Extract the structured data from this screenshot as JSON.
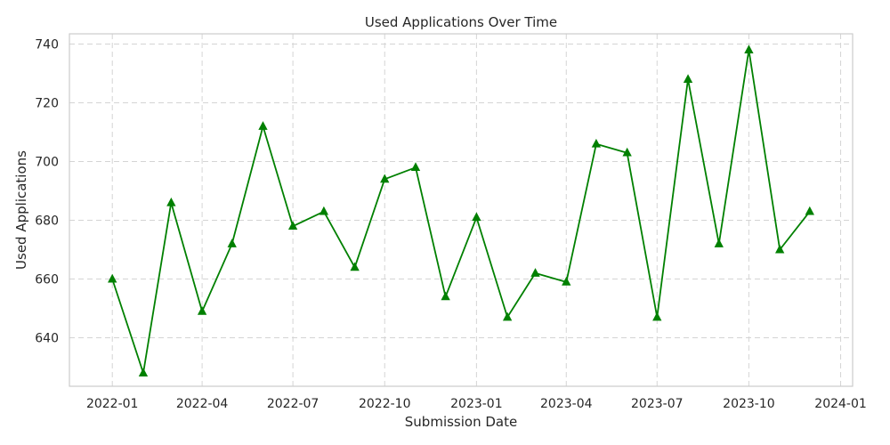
{
  "chart_data": {
    "type": "line",
    "title": "Used Applications Over Time",
    "xlabel": "Submission Date",
    "ylabel": "Used Applications",
    "x": [
      "2022-01-01",
      "2022-02-01",
      "2022-03-01",
      "2022-04-01",
      "2022-05-01",
      "2022-06-01",
      "2022-07-01",
      "2022-08-01",
      "2022-09-01",
      "2022-10-01",
      "2022-11-01",
      "2022-12-01",
      "2023-01-01",
      "2023-02-01",
      "2023-03-01",
      "2023-04-01",
      "2023-05-01",
      "2023-06-01",
      "2023-07-01",
      "2023-08-01",
      "2023-09-01",
      "2023-10-01",
      "2023-11-01",
      "2023-12-01"
    ],
    "series": [
      {
        "values": [
          660,
          628,
          686,
          649,
          672,
          712,
          678,
          683,
          664,
          694,
          698,
          654,
          681,
          647,
          662,
          659,
          706,
          703,
          647,
          728,
          672,
          738,
          670,
          683
        ],
        "color": "#008000",
        "marker": "triangle-up"
      }
    ],
    "x_ticks": [
      "2022-01",
      "2022-04",
      "2022-07",
      "2022-10",
      "2023-01",
      "2023-04",
      "2023-07",
      "2023-10",
      "2024-01"
    ],
    "y_ticks": [
      640,
      660,
      680,
      700,
      720,
      740
    ],
    "xlim": [
      "2021-11-19",
      "2024-01-13"
    ],
    "ylim": [
      623.5,
      743.5
    ],
    "grid": true
  }
}
